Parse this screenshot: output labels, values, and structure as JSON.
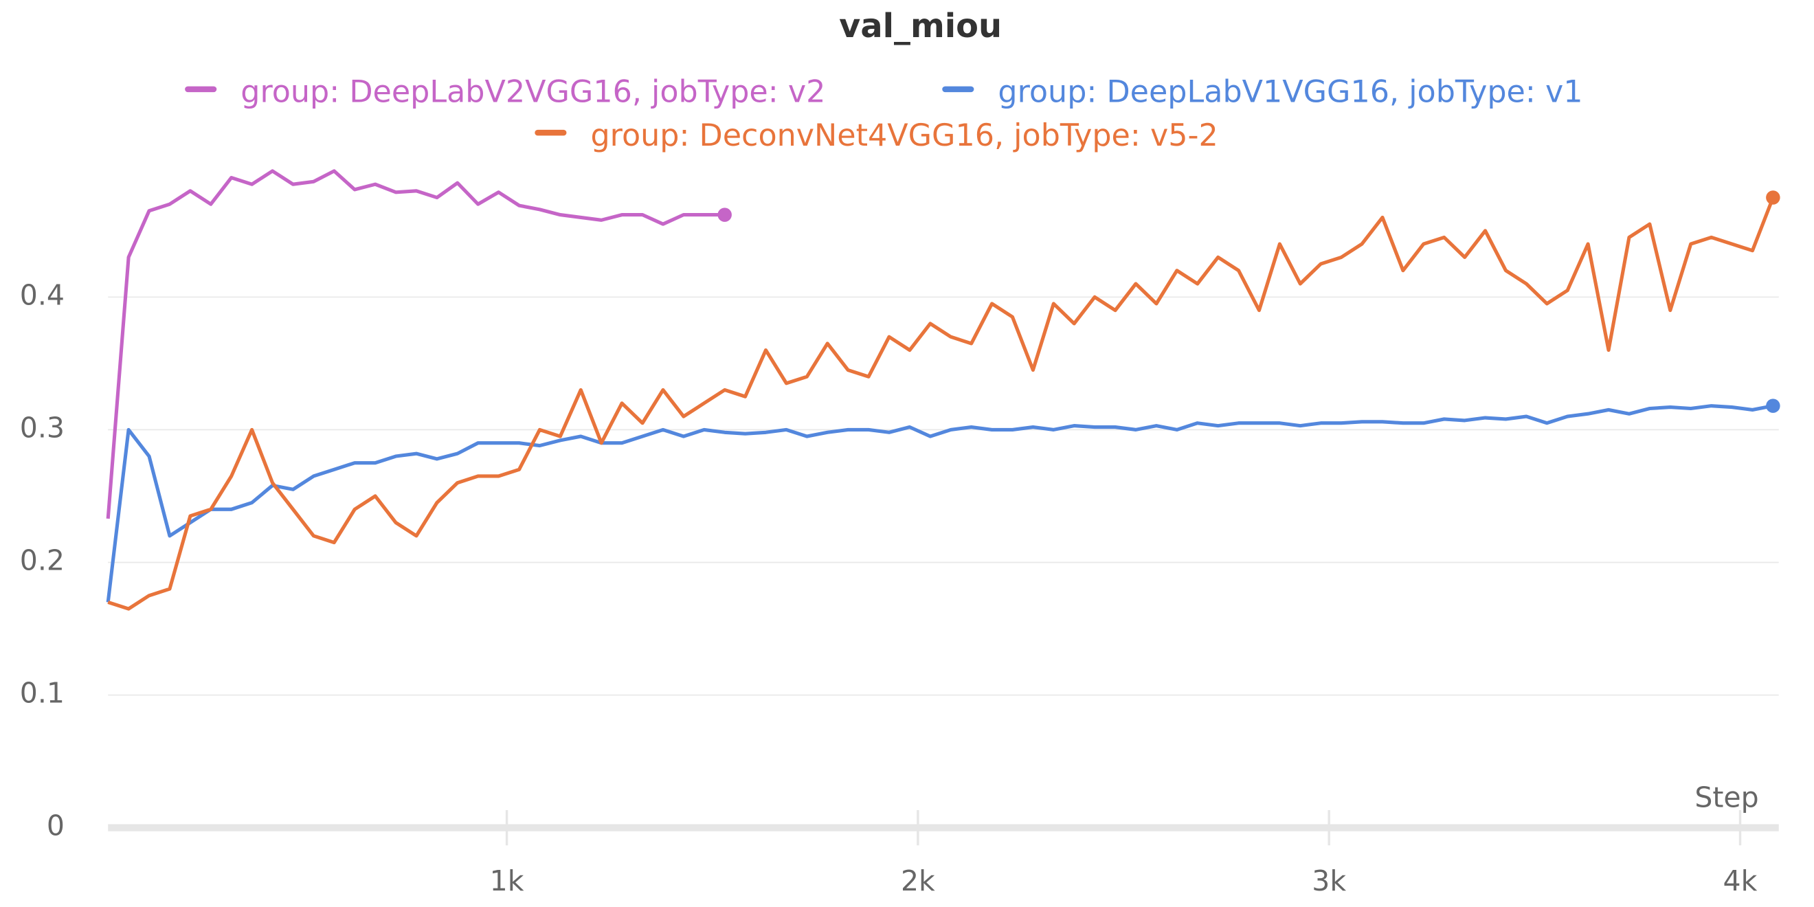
{
  "chart_data": {
    "type": "line",
    "title": "val_miou",
    "x_label": "Step",
    "xlim": [
      30,
      4094
    ],
    "ylim": [
      0,
      0.5
    ],
    "xticks": [
      {
        "value": 1000,
        "label": "1k"
      },
      {
        "value": 2000,
        "label": "2k"
      },
      {
        "value": 3000,
        "label": "3k"
      },
      {
        "value": 4000,
        "label": "4k"
      }
    ],
    "yticks": [
      0,
      0.1,
      0.2,
      0.3,
      0.4
    ],
    "grid": true,
    "x": [
      30,
      80,
      130,
      180,
      230,
      280,
      330,
      380,
      430,
      480,
      530,
      580,
      630,
      680,
      730,
      780,
      830,
      880,
      930,
      980,
      1030,
      1080,
      1130,
      1180,
      1230,
      1280,
      1330,
      1380,
      1430,
      1480,
      1530,
      1580,
      1630,
      1680,
      1730,
      1780,
      1830,
      1880,
      1930,
      1980,
      2030,
      2080,
      2130,
      2180,
      2230,
      2280,
      2330,
      2380,
      2430,
      2480,
      2530,
      2580,
      2630,
      2680,
      2730,
      2780,
      2830,
      2880,
      2930,
      2980,
      3030,
      3080,
      3130,
      3180,
      3230,
      3280,
      3330,
      3380,
      3430,
      3480,
      3530,
      3580,
      3630,
      3680,
      3730,
      3780,
      3830,
      3880,
      3930,
      3980,
      4030,
      4080
    ],
    "series": [
      {
        "name": "group: DeepLabV2VGG16, jobType: v2",
        "color": "#c565c7",
        "values": [
          0.233,
          0.43,
          0.465,
          0.47,
          0.48,
          0.47,
          0.49,
          0.485,
          0.495,
          0.485,
          0.487,
          0.495,
          0.481,
          0.485,
          0.479,
          0.48,
          0.475,
          0.486,
          0.47,
          0.479,
          0.469,
          0.466,
          0.462,
          0.46,
          0.458,
          0.462,
          0.462,
          0.455,
          0.462,
          0.462,
          0.462,
          null,
          null,
          null,
          null,
          null,
          null,
          null,
          null,
          null,
          null,
          null,
          null,
          null,
          null,
          null,
          null,
          null,
          null,
          null,
          null,
          null,
          null,
          null,
          null,
          null,
          null,
          null,
          null,
          null,
          null,
          null,
          null,
          null,
          null,
          null,
          null,
          null,
          null,
          null,
          null,
          null,
          null,
          null,
          null,
          null,
          null,
          null,
          null,
          null,
          null,
          null
        ]
      },
      {
        "name": "group: DeepLabV1VGG16, jobType: v1",
        "color": "#5387dd",
        "values": [
          0.17,
          0.3,
          0.28,
          0.22,
          0.23,
          0.24,
          0.24,
          0.245,
          0.258,
          0.255,
          0.265,
          0.27,
          0.275,
          0.275,
          0.28,
          0.282,
          0.278,
          0.282,
          0.29,
          0.29,
          0.29,
          0.288,
          0.292,
          0.295,
          0.29,
          0.29,
          0.295,
          0.3,
          0.295,
          0.3,
          0.298,
          0.297,
          0.298,
          0.3,
          0.295,
          0.298,
          0.3,
          0.3,
          0.298,
          0.302,
          0.295,
          0.3,
          0.302,
          0.3,
          0.3,
          0.302,
          0.3,
          0.303,
          0.302,
          0.302,
          0.3,
          0.303,
          0.3,
          0.305,
          0.303,
          0.305,
          0.305,
          0.305,
          0.303,
          0.305,
          0.305,
          0.306,
          0.306,
          0.305,
          0.305,
          0.308,
          0.307,
          0.309,
          0.308,
          0.31,
          0.305,
          0.31,
          0.312,
          0.315,
          0.312,
          0.316,
          0.317,
          0.316,
          0.318,
          0.317,
          0.315,
          0.318
        ]
      },
      {
        "name": "group: DeconvNet4VGG16, jobType: v5-2",
        "color": "#e8743b",
        "values": [
          0.17,
          0.165,
          0.175,
          0.18,
          0.235,
          0.24,
          0.265,
          0.3,
          0.26,
          0.24,
          0.22,
          0.215,
          0.24,
          0.25,
          0.23,
          0.22,
          0.245,
          0.26,
          0.265,
          0.265,
          0.27,
          0.3,
          0.295,
          0.33,
          0.29,
          0.32,
          0.305,
          0.33,
          0.31,
          0.32,
          0.33,
          0.325,
          0.36,
          0.335,
          0.34,
          0.365,
          0.345,
          0.34,
          0.37,
          0.36,
          0.38,
          0.37,
          0.365,
          0.395,
          0.385,
          0.345,
          0.395,
          0.38,
          0.4,
          0.39,
          0.41,
          0.395,
          0.42,
          0.41,
          0.43,
          0.42,
          0.39,
          0.44,
          0.41,
          0.425,
          0.43,
          0.44,
          0.46,
          0.42,
          0.44,
          0.445,
          0.43,
          0.45,
          0.42,
          0.41,
          0.395,
          0.405,
          0.44,
          0.36,
          0.445,
          0.455,
          0.39,
          0.44,
          0.445,
          0.44,
          0.435,
          0.475
        ]
      }
    ]
  }
}
